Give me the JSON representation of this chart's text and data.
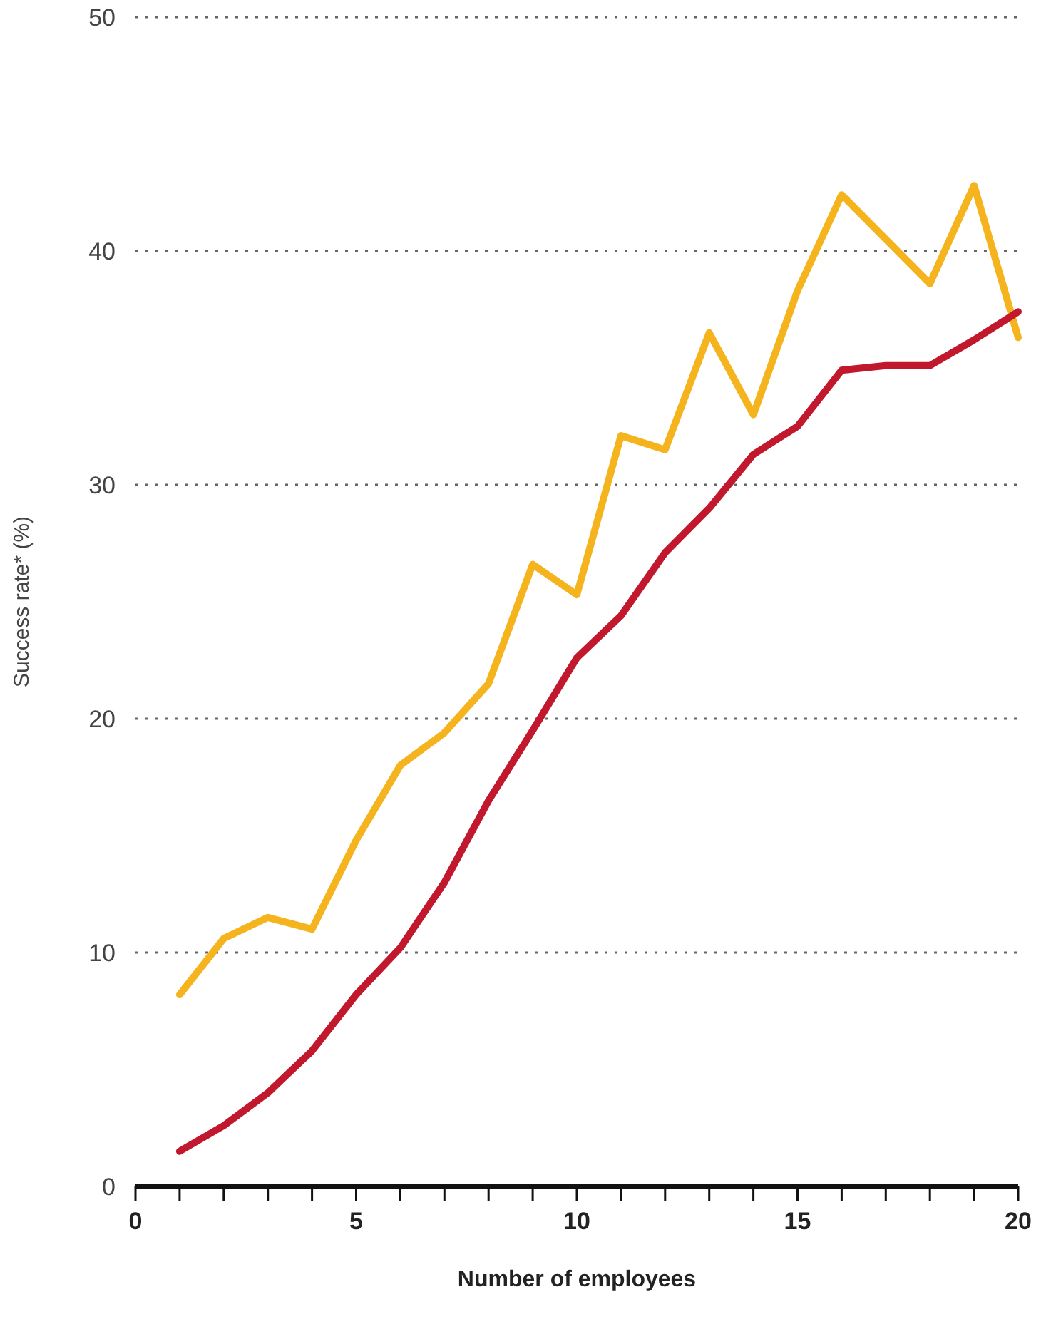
{
  "chart_data": {
    "type": "line",
    "xlabel": "Number of employees",
    "ylabel": "Success rate* (%)",
    "x": [
      1,
      2,
      3,
      4,
      5,
      6,
      7,
      8,
      9,
      10,
      11,
      12,
      13,
      14,
      15,
      16,
      17,
      18,
      19,
      20
    ],
    "series": [
      {
        "color": "#f5b41e",
        "values": [
          8.2,
          10.6,
          11.5,
          11.0,
          14.8,
          18.0,
          19.4,
          21.5,
          26.6,
          25.3,
          32.1,
          31.5,
          36.5,
          33.0,
          38.3,
          42.4,
          40.5,
          38.6,
          42.8,
          36.3
        ]
      },
      {
        "color": "#c2182e",
        "values": [
          1.5,
          2.6,
          4.0,
          5.8,
          8.2,
          10.2,
          13.0,
          16.5,
          19.5,
          22.6,
          24.4,
          27.1,
          29.0,
          31.3,
          32.5,
          34.9,
          35.1,
          35.1,
          36.2,
          37.4
        ]
      }
    ],
    "xlim": [
      0,
      20
    ],
    "xticks": [
      0,
      {
        "value": 1,
        "label": null
      },
      {
        "value": 2,
        "label": null
      },
      {
        "value": 3,
        "label": null
      },
      {
        "value": 4,
        "label": null
      },
      5,
      {
        "value": 6,
        "label": null
      },
      {
        "value": 7,
        "label": null
      },
      {
        "value": 8,
        "label": null
      },
      {
        "value": 9,
        "label": null
      },
      10,
      {
        "value": 11,
        "label": null
      },
      {
        "value": 12,
        "label": null
      },
      {
        "value": 13,
        "label": null
      },
      {
        "value": 14,
        "label": null
      },
      15,
      {
        "value": 16,
        "label": null
      },
      {
        "value": 17,
        "label": null
      },
      {
        "value": 18,
        "label": null
      },
      {
        "value": 19,
        "label": null
      },
      20
    ],
    "ylim": [
      0,
      50
    ],
    "yticks": [
      0,
      10,
      20,
      30,
      40,
      50
    ],
    "grid": "y",
    "marker": "none",
    "line_style": "solid"
  }
}
